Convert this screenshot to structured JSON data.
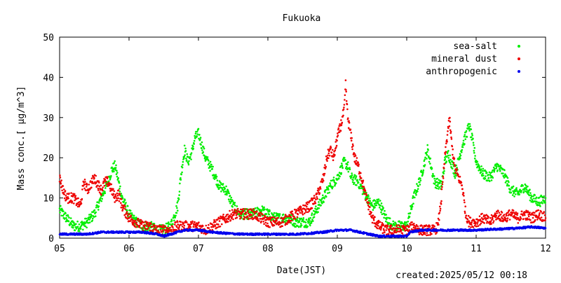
{
  "chart_data": {
    "type": "scatter",
    "title": "Fukuoka",
    "xlabel": "Date(JST)",
    "ylabel": "Mass conc.[ μg/m^3]",
    "created_label": "created:2025/05/12 00:18",
    "xlim": [
      5,
      12
    ],
    "ylim": [
      0,
      50
    ],
    "x_ticks": [
      "05",
      "06",
      "07",
      "08",
      "09",
      "10",
      "11",
      "12"
    ],
    "y_ticks": [
      "0",
      "10",
      "20",
      "30",
      "40",
      "50"
    ],
    "legend_position": "top-right",
    "grid": false,
    "series": [
      {
        "name": "sea-salt",
        "color": "#00ee00",
        "points": [
          [
            5.0,
            7
          ],
          [
            5.1,
            5
          ],
          [
            5.2,
            3
          ],
          [
            5.3,
            3
          ],
          [
            5.4,
            4
          ],
          [
            5.5,
            6
          ],
          [
            5.6,
            10
          ],
          [
            5.7,
            14
          ],
          [
            5.75,
            17
          ],
          [
            5.8,
            18
          ],
          [
            5.85,
            14
          ],
          [
            5.9,
            10
          ],
          [
            6.0,
            6
          ],
          [
            6.1,
            4
          ],
          [
            6.2,
            3
          ],
          [
            6.3,
            3
          ],
          [
            6.4,
            2
          ],
          [
            6.5,
            2
          ],
          [
            6.6,
            3
          ],
          [
            6.7,
            8
          ],
          [
            6.75,
            16
          ],
          [
            6.8,
            22
          ],
          [
            6.85,
            19
          ],
          [
            6.9,
            21
          ],
          [
            6.95,
            25
          ],
          [
            7.0,
            26
          ],
          [
            7.05,
            23
          ],
          [
            7.1,
            20
          ],
          [
            7.2,
            17
          ],
          [
            7.3,
            13
          ],
          [
            7.4,
            12
          ],
          [
            7.5,
            8
          ],
          [
            7.6,
            6
          ],
          [
            7.7,
            6
          ],
          [
            7.8,
            6
          ],
          [
            7.9,
            7
          ],
          [
            8.0,
            6
          ],
          [
            8.1,
            5
          ],
          [
            8.2,
            5
          ],
          [
            8.3,
            5
          ],
          [
            8.4,
            4
          ],
          [
            8.5,
            4
          ],
          [
            8.6,
            4
          ],
          [
            8.7,
            7
          ],
          [
            8.8,
            10
          ],
          [
            8.9,
            13
          ],
          [
            9.0,
            15
          ],
          [
            9.1,
            19
          ],
          [
            9.15,
            18
          ],
          [
            9.2,
            15
          ],
          [
            9.3,
            14
          ],
          [
            9.4,
            11
          ],
          [
            9.5,
            8
          ],
          [
            9.6,
            9
          ],
          [
            9.7,
            5
          ],
          [
            9.8,
            3
          ],
          [
            9.9,
            3
          ],
          [
            10.0,
            3
          ],
          [
            10.1,
            10
          ],
          [
            10.2,
            15
          ],
          [
            10.3,
            22
          ],
          [
            10.4,
            14
          ],
          [
            10.5,
            13
          ],
          [
            10.55,
            19
          ],
          [
            10.6,
            21
          ],
          [
            10.7,
            16
          ],
          [
            10.8,
            23
          ],
          [
            10.9,
            28
          ],
          [
            10.95,
            24
          ],
          [
            11.0,
            19
          ],
          [
            11.1,
            16
          ],
          [
            11.2,
            15
          ],
          [
            11.3,
            18
          ],
          [
            11.4,
            16
          ],
          [
            11.5,
            12
          ],
          [
            11.6,
            11
          ],
          [
            11.7,
            13
          ],
          [
            11.8,
            10
          ],
          [
            11.9,
            9
          ],
          [
            12.0,
            10
          ]
        ]
      },
      {
        "name": "mineral dust",
        "color": "#ee0000",
        "points": [
          [
            5.0,
            15
          ],
          [
            5.05,
            12
          ],
          [
            5.1,
            10
          ],
          [
            5.2,
            10
          ],
          [
            5.3,
            8
          ],
          [
            5.35,
            14
          ],
          [
            5.4,
            12
          ],
          [
            5.5,
            15
          ],
          [
            5.6,
            12
          ],
          [
            5.65,
            14
          ],
          [
            5.7,
            14
          ],
          [
            5.75,
            12
          ],
          [
            5.8,
            10
          ],
          [
            5.85,
            11
          ],
          [
            5.9,
            8
          ],
          [
            6.0,
            5
          ],
          [
            6.1,
            4
          ],
          [
            6.2,
            3
          ],
          [
            6.3,
            3
          ],
          [
            6.4,
            2
          ],
          [
            6.5,
            2
          ],
          [
            6.6,
            2
          ],
          [
            6.7,
            3
          ],
          [
            6.8,
            3
          ],
          [
            6.9,
            3
          ],
          [
            7.0,
            3
          ],
          [
            7.1,
            2
          ],
          [
            7.2,
            3
          ],
          [
            7.3,
            4
          ],
          [
            7.4,
            5
          ],
          [
            7.5,
            6
          ],
          [
            7.6,
            6
          ],
          [
            7.7,
            6
          ],
          [
            7.8,
            6
          ],
          [
            7.9,
            5
          ],
          [
            8.0,
            4
          ],
          [
            8.1,
            4
          ],
          [
            8.2,
            4
          ],
          [
            8.3,
            5
          ],
          [
            8.4,
            6
          ],
          [
            8.5,
            7
          ],
          [
            8.6,
            8
          ],
          [
            8.7,
            10
          ],
          [
            8.8,
            15
          ],
          [
            8.85,
            20
          ],
          [
            8.9,
            22
          ],
          [
            8.95,
            20
          ],
          [
            9.0,
            25
          ],
          [
            9.05,
            28
          ],
          [
            9.1,
            32
          ],
          [
            9.12,
            38
          ],
          [
            9.15,
            30
          ],
          [
            9.2,
            25
          ],
          [
            9.25,
            20
          ],
          [
            9.3,
            18
          ],
          [
            9.35,
            15
          ],
          [
            9.4,
            11
          ],
          [
            9.5,
            5
          ],
          [
            9.6,
            3
          ],
          [
            9.7,
            2
          ],
          [
            9.8,
            2
          ],
          [
            9.9,
            2
          ],
          [
            10.0,
            2
          ],
          [
            10.1,
            3
          ],
          [
            10.2,
            2
          ],
          [
            10.3,
            2
          ],
          [
            10.4,
            2
          ],
          [
            10.45,
            3
          ],
          [
            10.5,
            10
          ],
          [
            10.55,
            20
          ],
          [
            10.6,
            28
          ],
          [
            10.62,
            29
          ],
          [
            10.65,
            23
          ],
          [
            10.7,
            17
          ],
          [
            10.8,
            13
          ],
          [
            10.85,
            6
          ],
          [
            10.9,
            4
          ],
          [
            11.0,
            4
          ],
          [
            11.1,
            5
          ],
          [
            11.2,
            4
          ],
          [
            11.3,
            6
          ],
          [
            11.4,
            5
          ],
          [
            11.5,
            6
          ],
          [
            11.6,
            5
          ],
          [
            11.7,
            6
          ],
          [
            11.8,
            5
          ],
          [
            11.9,
            6
          ],
          [
            12.0,
            5
          ]
        ]
      },
      {
        "name": "anthropogenic",
        "color": "#0000ee",
        "points": [
          [
            5.0,
            1
          ],
          [
            5.2,
            1
          ],
          [
            5.4,
            1
          ],
          [
            5.6,
            1.5
          ],
          [
            5.8,
            1.5
          ],
          [
            6.0,
            1.5
          ],
          [
            6.2,
            1.5
          ],
          [
            6.4,
            1
          ],
          [
            6.5,
            0.5
          ],
          [
            6.6,
            1
          ],
          [
            6.8,
            2
          ],
          [
            7.0,
            2
          ],
          [
            7.2,
            1.5
          ],
          [
            7.4,
            1.2
          ],
          [
            7.6,
            1
          ],
          [
            7.8,
            1
          ],
          [
            8.0,
            1
          ],
          [
            8.2,
            1
          ],
          [
            8.4,
            1
          ],
          [
            8.6,
            1.2
          ],
          [
            8.8,
            1.5
          ],
          [
            9.0,
            2
          ],
          [
            9.2,
            2
          ],
          [
            9.4,
            1.2
          ],
          [
            9.6,
            0.5
          ],
          [
            9.8,
            0.5
          ],
          [
            10.0,
            0.5
          ],
          [
            10.05,
            1.5
          ],
          [
            10.2,
            2
          ],
          [
            10.4,
            2
          ],
          [
            10.6,
            2
          ],
          [
            10.8,
            2
          ],
          [
            11.0,
            2
          ],
          [
            11.2,
            2.2
          ],
          [
            11.4,
            2.3
          ],
          [
            11.6,
            2.5
          ],
          [
            11.8,
            2.8
          ],
          [
            12.0,
            2.5
          ]
        ]
      }
    ]
  }
}
